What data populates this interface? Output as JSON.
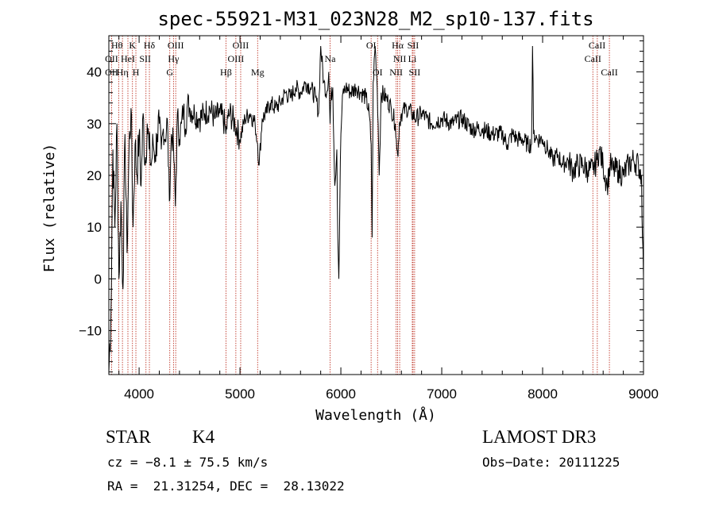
{
  "chart_data": {
    "type": "line",
    "title": "spec-55921-M31_023N28_M2_sp10-137.fits",
    "xlabel": "Wavelength (Å)",
    "ylabel": "Flux (relative)",
    "xlim": [
      3700,
      9000
    ],
    "ylim": [
      -18.5,
      47
    ],
    "x_ticks": [
      4000,
      5000,
      6000,
      7000,
      8000,
      9000
    ],
    "x_tick_labels": [
      "4000",
      "5000",
      "6000",
      "7000",
      "8000",
      "9000"
    ],
    "y_ticks": [
      -10,
      0,
      10,
      20,
      30,
      40
    ],
    "y_tick_labels": [
      "−10",
      "0",
      "10",
      "20",
      "30",
      "40"
    ],
    "grid": false,
    "series": [
      {
        "name": "spectrum",
        "color": "#000000",
        "x": [
          3700,
          3720,
          3740,
          3760,
          3780,
          3800,
          3820,
          3840,
          3860,
          3880,
          3900,
          3920,
          3940,
          3960,
          3980,
          4000,
          4020,
          4040,
          4060,
          4080,
          4100,
          4120,
          4140,
          4160,
          4180,
          4200,
          4220,
          4240,
          4260,
          4280,
          4300,
          4320,
          4340,
          4360,
          4380,
          4400,
          4420,
          4440,
          4460,
          4480,
          4500,
          4550,
          4600,
          4650,
          4700,
          4750,
          4800,
          4850,
          4861,
          4880,
          4900,
          4950,
          5000,
          5050,
          5100,
          5150,
          5175,
          5190,
          5220,
          5260,
          5300,
          5350,
          5400,
          5450,
          5500,
          5550,
          5600,
          5650,
          5700,
          5750,
          5780,
          5800,
          5830,
          5860,
          5880,
          5893,
          5900,
          5920,
          5940,
          5960,
          5970,
          5980,
          5990,
          6000,
          6020,
          6050,
          6100,
          6150,
          6200,
          6250,
          6280,
          6300,
          6310,
          6320,
          6340,
          6360,
          6370,
          6380,
          6400,
          6450,
          6500,
          6540,
          6555,
          6563,
          6570,
          6580,
          6600,
          6650,
          6700,
          6750,
          6800,
          6850,
          6900,
          7000,
          7100,
          7200,
          7300,
          7400,
          7500,
          7600,
          7650,
          7700,
          7750,
          7800,
          7850,
          7890,
          7900,
          7910,
          7950,
          8000,
          8050,
          8100,
          8150,
          8200,
          8250,
          8300,
          8350,
          8400,
          8450,
          8500,
          8540,
          8560,
          8600,
          8640,
          8670,
          8700,
          8750,
          8800,
          8850,
          8900,
          8950,
          8980,
          8990,
          9000
        ],
        "values": [
          -18,
          -8,
          25,
          10,
          30,
          0,
          15,
          -2,
          28,
          5,
          25,
          33,
          10,
          26,
          20,
          28,
          18,
          32,
          22,
          30,
          25,
          22,
          26,
          24,
          28,
          30,
          25,
          29,
          27,
          31,
          15,
          28,
          26,
          14,
          32,
          27,
          30,
          33,
          29,
          34,
          33,
          32,
          31,
          32,
          33,
          31,
          32,
          30,
          28,
          31,
          32,
          30,
          27,
          31,
          32,
          30,
          26,
          22,
          31,
          32,
          34,
          33,
          34,
          36,
          35,
          37,
          36,
          38,
          37,
          35,
          32,
          45,
          38,
          36,
          40,
          30,
          35,
          37,
          18,
          25,
          8,
          0,
          15,
          28,
          36,
          37,
          36,
          37,
          36,
          35,
          32,
          26,
          8,
          38,
          45,
          37,
          30,
          20,
          36,
          35,
          33,
          30,
          25,
          24,
          26,
          30,
          32,
          33,
          32,
          31,
          32,
          31,
          30,
          31,
          30,
          31,
          29,
          29,
          28,
          28,
          26,
          28,
          27,
          27,
          26,
          26,
          45,
          28,
          27,
          27,
          25,
          23,
          24,
          22,
          23,
          21,
          22,
          22,
          21,
          21,
          23,
          25,
          22,
          18,
          22,
          21,
          21,
          20,
          22,
          23,
          22,
          20,
          8,
          0
        ]
      }
    ],
    "lines": [
      {
        "name": "H-theta",
        "x": 3798
      },
      {
        "name": "OII",
        "x": 3727
      },
      {
        "name": "H-eta",
        "x": 3835
      },
      {
        "name": "HeI",
        "x": 3889
      },
      {
        "name": "K",
        "x": 3934
      },
      {
        "name": "H",
        "x": 3968
      },
      {
        "name": "SII",
        "x": 4068
      },
      {
        "name": "H-delta",
        "x": 4102
      },
      {
        "name": "G",
        "x": 4304
      },
      {
        "name": "H-gamma",
        "x": 4341
      },
      {
        "name": "OIII",
        "x": 4363
      },
      {
        "name": "H-beta",
        "x": 4861
      },
      {
        "name": "OIII-a",
        "x": 4959
      },
      {
        "name": "OIII-b",
        "x": 5007
      },
      {
        "name": "Mg",
        "x": 5175
      },
      {
        "name": "Na",
        "x": 5893
      },
      {
        "name": "OI-a",
        "x": 6300
      },
      {
        "name": "OI-b",
        "x": 6364
      },
      {
        "name": "NII-a",
        "x": 6548
      },
      {
        "name": "H-alpha",
        "x": 6563
      },
      {
        "name": "NII-b",
        "x": 6583
      },
      {
        "name": "Li",
        "x": 6708
      },
      {
        "name": "SII-a",
        "x": 6716
      },
      {
        "name": "SII-b",
        "x": 6731
      },
      {
        "name": "CaII-a",
        "x": 8498
      },
      {
        "name": "CaII-b",
        "x": 8542
      },
      {
        "name": "CaII-c",
        "x": 8662
      }
    ],
    "line_labels": [
      {
        "text": "Hθ",
        "x": 3780,
        "row": 0
      },
      {
        "text": "K",
        "x": 3934,
        "row": 0
      },
      {
        "text": "Hδ",
        "x": 4102,
        "row": 0
      },
      {
        "text": "OIII",
        "x": 4363,
        "row": 0
      },
      {
        "text": "OIII",
        "x": 5007,
        "row": 0
      },
      {
        "text": "OI",
        "x": 6300,
        "row": 0
      },
      {
        "text": "Hα",
        "x": 6563,
        "row": 0
      },
      {
        "text": "SII",
        "x": 6716,
        "row": 0
      },
      {
        "text": "CaII",
        "x": 8540,
        "row": 0
      },
      {
        "text": "OII",
        "x": 3727,
        "row": 1
      },
      {
        "text": "HeI",
        "x": 3889,
        "row": 1
      },
      {
        "text": "SII",
        "x": 4060,
        "row": 1
      },
      {
        "text": "Hγ",
        "x": 4341,
        "row": 1
      },
      {
        "text": "OIII",
        "x": 4959,
        "row": 1
      },
      {
        "text": "Na",
        "x": 5893,
        "row": 1
      },
      {
        "text": "NII",
        "x": 6583,
        "row": 1
      },
      {
        "text": "Li",
        "x": 6708,
        "row": 1
      },
      {
        "text": "CaII",
        "x": 8498,
        "row": 1
      },
      {
        "text": "OII",
        "x": 3727,
        "row": 2
      },
      {
        "text": "Hη",
        "x": 3835,
        "row": 2
      },
      {
        "text": "H",
        "x": 3968,
        "row": 2
      },
      {
        "text": "G",
        "x": 4304,
        "row": 2
      },
      {
        "text": "Hβ",
        "x": 4861,
        "row": 2
      },
      {
        "text": "Mg",
        "x": 5175,
        "row": 2
      },
      {
        "text": "OI",
        "x": 6364,
        "row": 2
      },
      {
        "text": "NII",
        "x": 6548,
        "row": 2
      },
      {
        "text": "SII",
        "x": 6731,
        "row": 2
      },
      {
        "text": "CaII",
        "x": 8662,
        "row": 2
      }
    ]
  },
  "info": {
    "object_class": "STAR",
    "subclass": "K4",
    "survey": "LAMOST DR3",
    "cz": "cz = −8.1 ± 75.5 km/s",
    "obs_date": "Obs−Date: 20111225",
    "coords": "RA =  21.31254, DEC =  28.13022"
  },
  "colors": {
    "spectrum": "#000000",
    "line_markers": "#c0392b"
  }
}
